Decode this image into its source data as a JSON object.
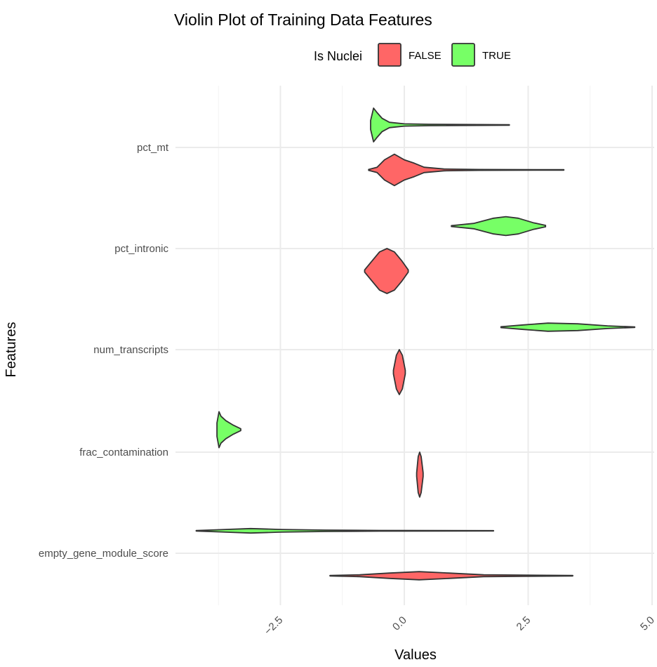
{
  "chart_data": {
    "type": "violin",
    "title": "Violin Plot of Training Data Features",
    "xlabel": "Values",
    "ylabel": "Features",
    "xlim": [
      -4.0,
      5.0
    ],
    "x_ticks": [
      -2.5,
      0.0,
      2.5,
      5.0
    ],
    "x_tick_labels": [
      "−2.5",
      "0.0",
      "2.5",
      "5.0"
    ],
    "grid": true,
    "legend": {
      "title": "Is Nuclei",
      "position": "top",
      "entries": [
        {
          "label": "FALSE",
          "color": "#ff6666"
        },
        {
          "label": "TRUE",
          "color": "#77ff66"
        }
      ]
    },
    "categories": [
      "pct_mt",
      "pct_intronic",
      "num_transcripts",
      "frac_contamination",
      "empty_gene_module_score"
    ],
    "series": [
      {
        "group": "FALSE",
        "color": "#ff6666",
        "violins": [
          {
            "feature": "pct_mt",
            "min": -0.72,
            "max": 3.22,
            "median": -0.2,
            "density": [
              [
                -0.72,
                0.02
              ],
              [
                -0.55,
                0.12
              ],
              [
                -0.4,
                0.45
              ],
              [
                -0.2,
                0.7
              ],
              [
                0.0,
                0.45
              ],
              [
                0.2,
                0.3
              ],
              [
                0.4,
                0.12
              ],
              [
                0.8,
                0.04
              ],
              [
                1.5,
                0.02
              ],
              [
                3.22,
                0.01
              ]
            ]
          },
          {
            "feature": "pct_intronic",
            "min": -0.8,
            "max": 0.08,
            "median": -0.35,
            "density": [
              [
                -0.8,
                0.05
              ],
              [
                -0.65,
                0.45
              ],
              [
                -0.5,
                0.85
              ],
              [
                -0.35,
                1.0
              ],
              [
                -0.2,
                0.85
              ],
              [
                -0.05,
                0.45
              ],
              [
                0.08,
                0.05
              ]
            ]
          },
          {
            "feature": "num_transcripts",
            "min": -0.22,
            "max": 0.02,
            "median": -0.1,
            "density": [
              [
                -0.22,
                0.08
              ],
              [
                -0.16,
                0.75
              ],
              [
                -0.1,
                1.0
              ],
              [
                -0.04,
                0.75
              ],
              [
                0.02,
                0.08
              ]
            ]
          },
          {
            "feature": "frac_contamination",
            "min": 0.25,
            "max": 0.38,
            "median": 0.31,
            "density": [
              [
                0.25,
                0.08
              ],
              [
                0.28,
                0.8
              ],
              [
                0.31,
                1.0
              ],
              [
                0.34,
                0.8
              ],
              [
                0.38,
                0.08
              ]
            ]
          },
          {
            "feature": "empty_gene_module_score",
            "min": -1.5,
            "max": 3.4,
            "median": 0.3,
            "density": [
              [
                -1.5,
                0.01
              ],
              [
                -0.9,
                0.04
              ],
              [
                -0.3,
                0.12
              ],
              [
                0.3,
                0.18
              ],
              [
                0.9,
                0.12
              ],
              [
                1.6,
                0.04
              ],
              [
                3.4,
                0.01
              ]
            ]
          }
        ]
      },
      {
        "group": "TRUE",
        "color": "#77ff66",
        "violins": [
          {
            "feature": "pct_mt",
            "min": -0.68,
            "max": 2.12,
            "median": -0.55,
            "density": [
              [
                -0.68,
                0.2
              ],
              [
                -0.62,
                0.75
              ],
              [
                -0.55,
                0.55
              ],
              [
                -0.45,
                0.3
              ],
              [
                -0.3,
                0.12
              ],
              [
                0.0,
                0.05
              ],
              [
                0.5,
                0.03
              ],
              [
                2.12,
                0.01
              ]
            ]
          },
          {
            "feature": "pct_intronic",
            "min": 0.95,
            "max": 2.85,
            "median": 2.05,
            "density": [
              [
                0.95,
                0.02
              ],
              [
                1.4,
                0.12
              ],
              [
                1.8,
                0.35
              ],
              [
                2.05,
                0.42
              ],
              [
                2.3,
                0.35
              ],
              [
                2.6,
                0.15
              ],
              [
                2.85,
                0.03
              ]
            ]
          },
          {
            "feature": "num_transcripts",
            "min": 1.95,
            "max": 4.65,
            "median": 2.9,
            "density": [
              [
                1.95,
                0.02
              ],
              [
                2.4,
                0.1
              ],
              [
                2.9,
                0.18
              ],
              [
                3.5,
                0.15
              ],
              [
                4.1,
                0.06
              ],
              [
                4.65,
                0.01
              ]
            ]
          },
          {
            "feature": "frac_contamination",
            "min": -3.78,
            "max": -3.3,
            "median": -3.7,
            "density": [
              [
                -3.78,
                0.3
              ],
              [
                -3.74,
                0.8
              ],
              [
                -3.7,
                0.6
              ],
              [
                -3.6,
                0.4
              ],
              [
                -3.45,
                0.2
              ],
              [
                -3.3,
                0.04
              ]
            ]
          },
          {
            "feature": "empty_gene_module_score",
            "min": -4.2,
            "max": 1.8,
            "median": -3.1,
            "density": [
              [
                -4.2,
                0.01
              ],
              [
                -3.7,
                0.05
              ],
              [
                -3.1,
                0.1
              ],
              [
                -2.5,
                0.06
              ],
              [
                -1.6,
                0.03
              ],
              [
                -0.5,
                0.015
              ],
              [
                1.8,
                0.005
              ]
            ]
          }
        ]
      }
    ]
  }
}
